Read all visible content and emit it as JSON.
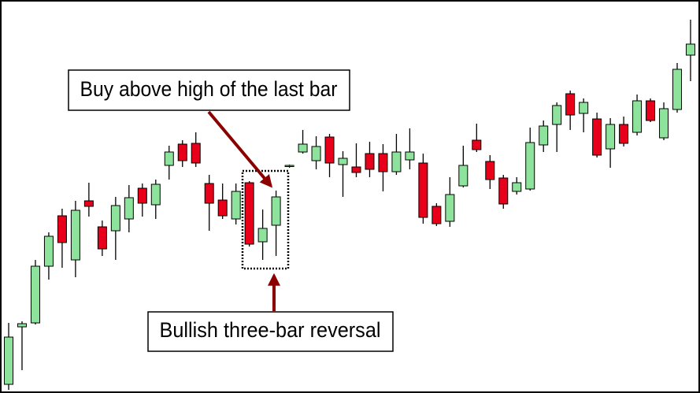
{
  "chart_data": {
    "type": "candlestick",
    "open": [
      11,
      84,
      89,
      161,
      225,
      169,
      244,
      211,
      206,
      221,
      260,
      239,
      289,
      316,
      317,
      266,
      245,
      221,
      267,
      192,
      213,
      288,
      306,
      295,
      325,
      290,
      287,
      304,
      304,
      281,
      296,
      292,
      237,
      218,
      263,
      321,
      294,
      273,
      256,
      259,
      315,
      341,
      380,
      355,
      348,
      310,
      341,
      331,
      371,
      324,
      360,
      429
    ],
    "high": [
      89,
      91,
      169,
      204,
      234,
      244,
      267,
      219,
      249,
      264,
      266,
      271,
      314,
      321,
      331,
      277,
      266,
      266,
      269,
      233,
      257,
      290,
      334,
      326,
      329,
      307,
      317,
      319,
      316,
      329,
      336,
      304,
      241,
      274,
      314,
      342,
      302,
      277,
      274,
      337,
      346,
      369,
      384,
      374,
      356,
      349,
      351,
      379,
      374,
      369,
      419,
      474
    ],
    "low": [
      4,
      29,
      87,
      144,
      159,
      147,
      224,
      174,
      169,
      204,
      224,
      221,
      271,
      287,
      287,
      206,
      221,
      214,
      186,
      169,
      174,
      286,
      304,
      284,
      274,
      249,
      274,
      274,
      256,
      277,
      284,
      215,
      212,
      211,
      261,
      306,
      259,
      234,
      252,
      257,
      306,
      306,
      334,
      331,
      299,
      286,
      313,
      327,
      344,
      321,
      356,
      396
    ],
    "close": [
      71,
      88,
      161,
      199,
      191,
      232,
      237,
      183,
      238,
      248,
      241,
      265,
      306,
      295,
      292,
      241,
      225,
      256,
      189,
      209,
      249,
      289,
      316,
      313,
      292,
      298,
      280,
      284,
      281,
      306,
      306,
      223,
      215,
      252,
      289,
      309,
      271,
      240,
      267,
      318,
      339,
      365,
      353,
      369,
      302,
      341,
      317,
      371,
      346,
      361,
      411,
      443
    ],
    "up_color": "#8ee39c",
    "down_color": "#e8001a",
    "ylim": [
      0,
      499
    ],
    "annotations": [
      "Buy above high of the last bar",
      "Bullish three-bar reversal"
    ]
  }
}
